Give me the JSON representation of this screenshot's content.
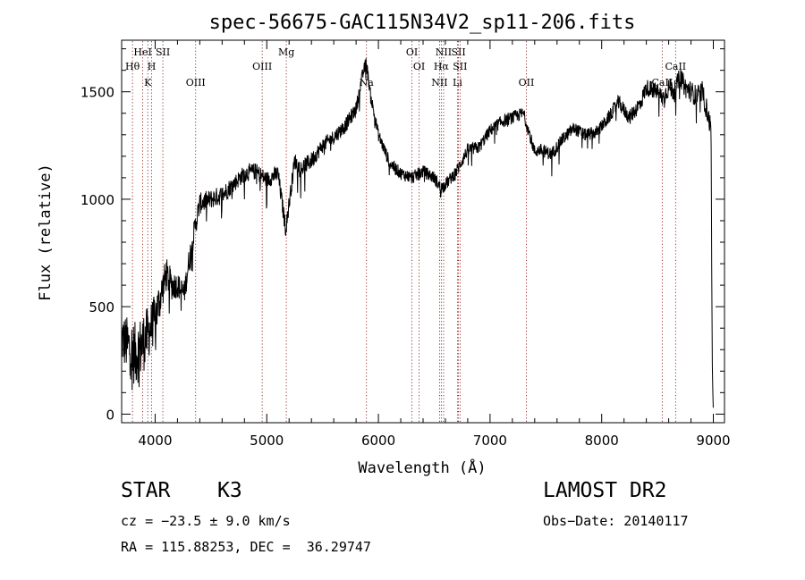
{
  "chart_data": {
    "type": "line",
    "title": "spec-56675-GAC115N34V2_sp11-206.fits",
    "xlabel": "Wavelength (Å)",
    "ylabel": "Flux (relative)",
    "xlim": [
      3700,
      9100
    ],
    "ylim": [
      -40,
      1740
    ],
    "xticks": [
      4000,
      5000,
      6000,
      7000,
      8000,
      9000
    ],
    "yticks": [
      0,
      500,
      1000,
      1500
    ],
    "grid": false,
    "line_color": "#000000",
    "marker_color": "#8b0000",
    "spectrum_anchors": {
      "x": [
        3700,
        3740,
        3780,
        3820,
        3860,
        3900,
        3950,
        4000,
        4050,
        4100,
        4150,
        4200,
        4260,
        4300,
        4350,
        4400,
        4500,
        4600,
        4700,
        4800,
        4900,
        5000,
        5100,
        5170,
        5250,
        5300,
        5400,
        5500,
        5600,
        5700,
        5800,
        5850,
        5890,
        5930,
        6000,
        6100,
        6200,
        6300,
        6400,
        6500,
        6560,
        6620,
        6700,
        6800,
        6900,
        7000,
        7100,
        7200,
        7300,
        7400,
        7450,
        7550,
        7650,
        7750,
        7850,
        7950,
        8050,
        8150,
        8250,
        8350,
        8400,
        8500,
        8550,
        8600,
        8650,
        8700,
        8750,
        8800,
        8850,
        8900,
        8950,
        8980,
        8990,
        9000
      ],
      "y": [
        350,
        330,
        300,
        280,
        300,
        340,
        390,
        450,
        550,
        650,
        600,
        600,
        560,
        700,
        850,
        980,
        1000,
        1020,
        1070,
        1120,
        1130,
        1090,
        1120,
        860,
        1180,
        1140,
        1180,
        1250,
        1290,
        1340,
        1420,
        1560,
        1640,
        1480,
        1300,
        1170,
        1120,
        1100,
        1130,
        1100,
        1050,
        1080,
        1130,
        1230,
        1240,
        1320,
        1360,
        1380,
        1400,
        1220,
        1230,
        1210,
        1280,
        1330,
        1300,
        1310,
        1370,
        1450,
        1380,
        1450,
        1520,
        1500,
        1470,
        1520,
        1500,
        1570,
        1520,
        1500,
        1480,
        1500,
        1400,
        1320,
        250,
        0
      ],
      "noise": [
        120,
        130,
        140,
        150,
        150,
        140,
        120,
        110,
        90,
        80,
        70,
        60,
        60,
        60,
        55,
        50,
        45,
        45,
        40,
        40,
        40,
        40,
        40,
        40,
        40,
        40,
        40,
        35,
        35,
        35,
        35,
        30,
        30,
        30,
        30,
        30,
        30,
        30,
        30,
        30,
        30,
        30,
        30,
        30,
        30,
        30,
        30,
        30,
        30,
        30,
        30,
        30,
        30,
        30,
        30,
        30,
        30,
        35,
        35,
        40,
        40,
        40,
        45,
        45,
        45,
        45,
        50,
        50,
        50,
        50,
        50,
        50,
        0,
        0
      ]
    },
    "lines": [
      {
        "name": "Hθ",
        "x": 3797,
        "row": 3
      },
      {
        "name": "HeI",
        "x": 3889,
        "row": 1
      },
      {
        "name": "K",
        "x": 3934,
        "row": 4
      },
      {
        "name": "SII",
        "x": 4069,
        "row": 1
      },
      {
        "name": "H",
        "x": 3969,
        "row": 3
      },
      {
        "name": "OIII",
        "x": 4363,
        "row": 4
      },
      {
        "name": "OIII",
        "x": 4959,
        "row": 3
      },
      {
        "name": "Mg",
        "x": 5175,
        "row": 1
      },
      {
        "name": "Na",
        "x": 5893,
        "row": 4
      },
      {
        "name": "OI",
        "x": 6300,
        "row": 1
      },
      {
        "name": "OI",
        "x": 6364,
        "row": 3
      },
      {
        "name": "NII",
        "x": 6548,
        "row": 4
      },
      {
        "name": "NII",
        "x": 6584,
        "row": 1
      },
      {
        "name": "Hα",
        "x": 6563,
        "row": 3
      },
      {
        "name": "SII",
        "x": 6717,
        "row": 1
      },
      {
        "name": "SII",
        "x": 6731,
        "row": 3
      },
      {
        "name": "Li",
        "x": 6708,
        "row": 4
      },
      {
        "name": "OII",
        "x": 7325,
        "row": 4
      },
      {
        "name": "CaII",
        "x": 8542,
        "row": 4
      },
      {
        "name": "CaII",
        "x": 8662,
        "row": 3
      }
    ]
  },
  "info": {
    "object_class": "STAR",
    "subclass": "K3",
    "survey": "LAMOST DR2",
    "cz": "cz = −23.5 ± 9.0 km/s",
    "obs_date": "Obs−Date: 20140117",
    "radec": "RA = 115.88253, DEC =  36.29747"
  }
}
